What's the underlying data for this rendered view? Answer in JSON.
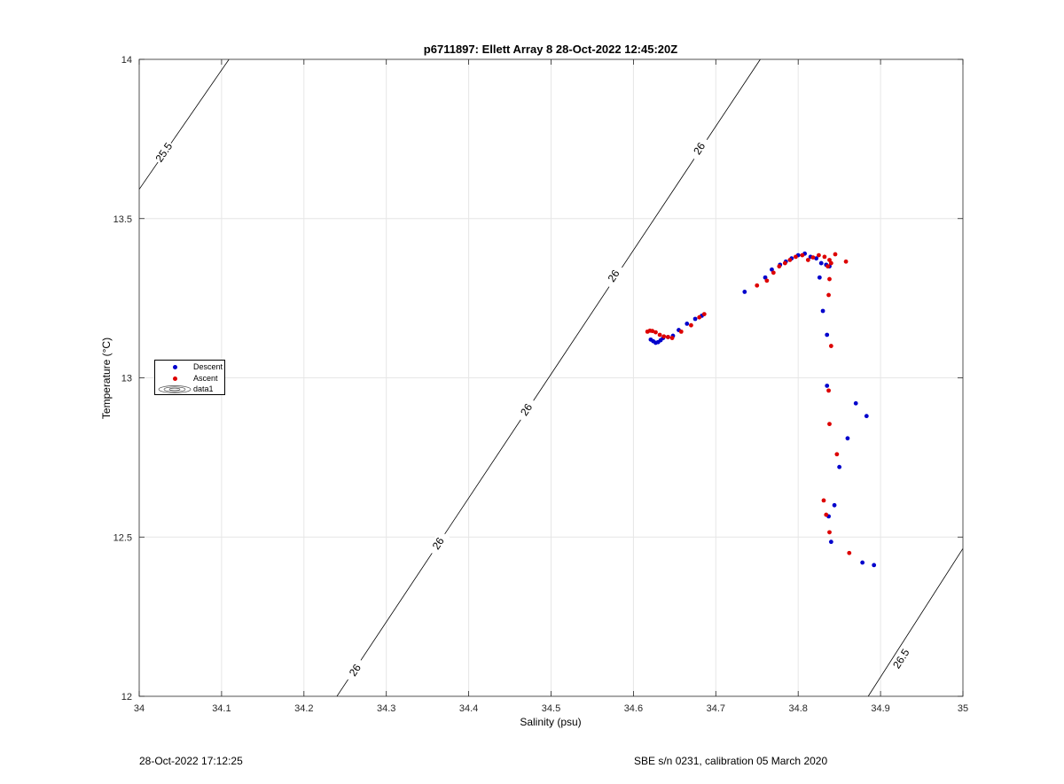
{
  "chart_data": {
    "type": "scatter",
    "title": "p6711897: Ellett Array 8 28-Oct-2022 12:45:20Z",
    "xlabel": "Salinity (psu)",
    "ylabel": "Temperature (°C)",
    "xlim": [
      34,
      35
    ],
    "ylim": [
      12,
      14
    ],
    "xticks": [
      34,
      34.1,
      34.2,
      34.3,
      34.4,
      34.5,
      34.6,
      34.7,
      34.8,
      34.9,
      35
    ],
    "xtick_labels": [
      "34",
      "34.1",
      "34.2",
      "34.3",
      "34.4",
      "34.5",
      "34.6",
      "34.7",
      "34.8",
      "34.9",
      "35"
    ],
    "yticks": [
      12,
      12.5,
      13,
      13.5,
      14
    ],
    "ytick_labels": [
      "12",
      "12.5",
      "13",
      "13.5",
      "14"
    ],
    "grid": true,
    "legend_position": "left",
    "series": [
      {
        "name": "Descent",
        "color": "#0000cc",
        "points": [
          [
            34.621,
            13.12
          ],
          [
            34.624,
            13.115
          ],
          [
            34.627,
            13.11
          ],
          [
            34.63,
            13.112
          ],
          [
            34.633,
            13.118
          ],
          [
            34.636,
            13.125
          ],
          [
            34.642,
            13.128
          ],
          [
            34.648,
            13.132
          ],
          [
            34.655,
            13.15
          ],
          [
            34.665,
            13.17
          ],
          [
            34.675,
            13.185
          ],
          [
            34.683,
            13.195
          ],
          [
            34.735,
            13.27
          ],
          [
            34.76,
            13.315
          ],
          [
            34.768,
            13.34
          ],
          [
            34.778,
            13.355
          ],
          [
            34.785,
            13.365
          ],
          [
            34.792,
            13.375
          ],
          [
            34.8,
            13.385
          ],
          [
            34.808,
            13.39
          ],
          [
            34.815,
            13.38
          ],
          [
            34.822,
            13.375
          ],
          [
            34.828,
            13.36
          ],
          [
            34.834,
            13.355
          ],
          [
            34.838,
            13.35
          ],
          [
            34.826,
            13.315
          ],
          [
            34.83,
            13.21
          ],
          [
            34.835,
            13.135
          ],
          [
            34.835,
            12.975
          ],
          [
            34.87,
            12.92
          ],
          [
            34.883,
            12.88
          ],
          [
            34.86,
            12.81
          ],
          [
            34.85,
            12.72
          ],
          [
            34.844,
            12.6
          ],
          [
            34.837,
            12.565
          ],
          [
            34.84,
            12.485
          ],
          [
            34.878,
            12.42
          ],
          [
            34.892,
            12.412
          ]
        ]
      },
      {
        "name": "Ascent",
        "color": "#dd0000",
        "points": [
          [
            34.617,
            13.145
          ],
          [
            34.62,
            13.148
          ],
          [
            34.623,
            13.147
          ],
          [
            34.627,
            13.143
          ],
          [
            34.632,
            13.135
          ],
          [
            34.637,
            13.13
          ],
          [
            34.642,
            13.128
          ],
          [
            34.647,
            13.125
          ],
          [
            34.658,
            13.145
          ],
          [
            34.67,
            13.165
          ],
          [
            34.68,
            13.19
          ],
          [
            34.686,
            13.2
          ],
          [
            34.75,
            13.29
          ],
          [
            34.762,
            13.305
          ],
          [
            34.77,
            13.33
          ],
          [
            34.777,
            13.35
          ],
          [
            34.784,
            13.36
          ],
          [
            34.79,
            13.37
          ],
          [
            34.797,
            13.38
          ],
          [
            34.805,
            13.385
          ],
          [
            34.812,
            13.37
          ],
          [
            34.818,
            13.378
          ],
          [
            34.825,
            13.385
          ],
          [
            34.832,
            13.38
          ],
          [
            34.838,
            13.37
          ],
          [
            34.845,
            13.388
          ],
          [
            34.858,
            13.365
          ],
          [
            34.84,
            13.36
          ],
          [
            34.836,
            13.35
          ],
          [
            34.838,
            13.31
          ],
          [
            34.837,
            13.26
          ],
          [
            34.84,
            13.1
          ],
          [
            34.837,
            12.96
          ],
          [
            34.838,
            12.855
          ],
          [
            34.847,
            12.76
          ],
          [
            34.831,
            12.615
          ],
          [
            34.834,
            12.57
          ],
          [
            34.838,
            12.515
          ],
          [
            34.862,
            12.45
          ]
        ]
      }
    ],
    "contour_series_name": "data1",
    "contours": [
      {
        "label": "25.5",
        "from": [
          34,
          13.592
        ],
        "to": [
          34.109,
          14
        ],
        "label_at": [
          34.03,
          13.708
        ]
      },
      {
        "label": "26",
        "from": [
          34.24,
          12
        ],
        "to": [
          34.754,
          14
        ],
        "labels_at": [
          [
            34.262,
            12.082
          ],
          [
            34.363,
            12.48
          ],
          [
            34.47,
            12.9
          ],
          [
            34.576,
            13.32
          ],
          [
            34.68,
            13.72
          ]
        ]
      },
      {
        "label": "26.5",
        "from": [
          34.885,
          12
        ],
        "to": [
          35,
          12.464
        ],
        "label_at": [
          34.925,
          12.118
        ]
      }
    ]
  },
  "legend": {
    "descent_label": "Descent",
    "ascent_label": "Ascent",
    "data1_label": "data1"
  },
  "footer": {
    "left": "28-Oct-2022 17:12:25",
    "right": "SBE s/n 0231, calibration 05 March 2020"
  }
}
